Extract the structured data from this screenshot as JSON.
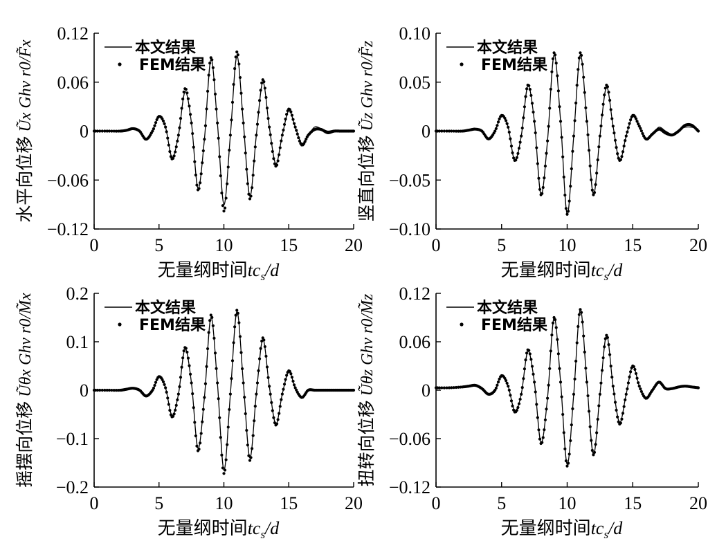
{
  "chart_data": [
    {
      "type": "line",
      "panel": "top-left",
      "xlabel": "无量纲时间tc_s/d",
      "xlabel_cn": "无量纲时间",
      "ylabel_cn": "水平向位移",
      "ylabel_math": "Ũx Ghv r0/F̃x",
      "xlim": [
        0,
        20
      ],
      "ylim": [
        -0.12,
        0.12
      ],
      "xticks": [
        "0",
        "5",
        "10",
        "15",
        "20"
      ],
      "yticks": [
        "0.12",
        "0.06",
        "0",
        "−0.06",
        "−0.12"
      ],
      "ytick_values": [
        0.12,
        0.06,
        0,
        -0.06,
        -0.12
      ],
      "legend_position": "top-left",
      "series": [
        {
          "name": "本文结果",
          "style": "line",
          "color": "#000000",
          "x": [
            0,
            1,
            2,
            2.5,
            3,
            3.5,
            4,
            4.5,
            5,
            5.5,
            6,
            6.5,
            7,
            7.5,
            8,
            8.5,
            9,
            9.5,
            10,
            10.5,
            11,
            11.5,
            12,
            12.5,
            13,
            13.5,
            14,
            14.5,
            15,
            15.5,
            16,
            16.5,
            17,
            17.5,
            18,
            18.5,
            19,
            19.5,
            20
          ],
          "y": [
            0,
            0,
            0,
            0.001,
            0.002,
            0,
            -0.01,
            0,
            0.018,
            0.005,
            -0.032,
            -0.005,
            0.048,
            0.01,
            -0.07,
            -0.01,
            0.088,
            0.01,
            -0.09,
            -0.005,
            0.092,
            0.01,
            -0.08,
            -0.005,
            0.06,
            0.005,
            -0.04,
            -0.005,
            0.025,
            0.005,
            -0.015,
            -0.005,
            0.005,
            0.003,
            0,
            0.001,
            0,
            0.001,
            0
          ]
        },
        {
          "name": "FEM结果",
          "style": "dots",
          "color": "#000000",
          "x": [
            0,
            1,
            2,
            2.5,
            3,
            3.5,
            4,
            4.5,
            5,
            5.5,
            6,
            6.5,
            7,
            7.5,
            8,
            8.5,
            9,
            9.5,
            10,
            10.5,
            11,
            11.5,
            12,
            12.5,
            13,
            13.5,
            14,
            14.5,
            15,
            15.5,
            16,
            16.5,
            17,
            17.5,
            18,
            18.5,
            19,
            19.5,
            20
          ],
          "y": [
            0,
            0,
            0,
            0.001,
            0.003,
            0,
            -0.01,
            0,
            0.018,
            0.005,
            -0.034,
            -0.005,
            0.052,
            0.01,
            -0.072,
            -0.01,
            0.09,
            0.01,
            -0.098,
            -0.005,
            0.097,
            0.01,
            -0.083,
            -0.005,
            0.063,
            0.005,
            -0.043,
            -0.005,
            0.027,
            0.005,
            -0.017,
            -0.005,
            0.002,
            0.002,
            -0.002,
            0,
            0,
            0,
            0
          ]
        }
      ]
    },
    {
      "type": "line",
      "panel": "top-right",
      "xlabel": "无量纲时间tc_s/d",
      "xlabel_cn": "无量纲时间",
      "ylabel_cn": "竖直向位移",
      "ylabel_math": "Ũz Ghv r0/F̃z",
      "xlim": [
        0,
        20
      ],
      "ylim": [
        -0.1,
        0.1
      ],
      "xticks": [
        "0",
        "5",
        "10",
        "15",
        "20"
      ],
      "yticks": [
        "0.10",
        "0.05",
        "0",
        "−0.05",
        "−0.10"
      ],
      "ytick_values": [
        0.1,
        0.05,
        0,
        -0.05,
        -0.1
      ],
      "legend_position": "top-left",
      "series": [
        {
          "name": "本文结果",
          "style": "line",
          "color": "#000000",
          "x": [
            0,
            1,
            2,
            2.5,
            3,
            3.5,
            4,
            4.5,
            5,
            5.5,
            6,
            6.5,
            7,
            7.5,
            8,
            8.5,
            9,
            9.5,
            10,
            10.5,
            11,
            11.5,
            12,
            12.5,
            13,
            13.5,
            14,
            14.5,
            15,
            15.5,
            16,
            16.5,
            17,
            17.5,
            18,
            18.5,
            19,
            19.5,
            20
          ],
          "y": [
            0,
            0,
            0,
            0.001,
            0.002,
            0,
            -0.008,
            0,
            0.016,
            0.004,
            -0.03,
            -0.005,
            0.046,
            0.01,
            -0.065,
            -0.01,
            0.078,
            0.01,
            -0.085,
            -0.005,
            0.078,
            0.01,
            -0.065,
            -0.005,
            0.045,
            0.005,
            -0.03,
            -0.005,
            0.015,
            0.005,
            -0.008,
            -0.003,
            0.004,
            0,
            -0.003,
            0.001,
            0.004,
            0.004,
            0.002
          ]
        },
        {
          "name": "FEM结果",
          "style": "dots",
          "color": "#000000",
          "x": [
            0,
            1,
            2,
            2.5,
            3,
            3.5,
            4,
            4.5,
            5,
            5.5,
            6,
            6.5,
            7,
            7.5,
            8,
            8.5,
            9,
            9.5,
            10,
            10.5,
            11,
            11.5,
            12,
            12.5,
            13,
            13.5,
            14,
            14.5,
            15,
            15.5,
            16,
            16.5,
            17,
            17.5,
            18,
            18.5,
            19,
            19.5,
            20
          ],
          "y": [
            0,
            0,
            0,
            0.001,
            0.002,
            0,
            -0.008,
            0,
            0.016,
            0.004,
            -0.03,
            -0.005,
            0.047,
            0.01,
            -0.065,
            -0.01,
            0.08,
            0.01,
            -0.085,
            -0.005,
            0.08,
            0.01,
            -0.065,
            -0.005,
            0.047,
            0.005,
            -0.03,
            -0.005,
            0.016,
            0.005,
            -0.008,
            -0.003,
            0.002,
            -0.002,
            -0.004,
            0,
            0.006,
            0.006,
            0
          ]
        }
      ]
    },
    {
      "type": "line",
      "panel": "bottom-left",
      "xlabel": "无量纲时间tc_s/d",
      "xlabel_cn": "无量纲时间",
      "ylabel_cn": "摇摆向位移",
      "ylabel_math": "Ũθx Ghv r0/M̃x",
      "xlim": [
        0,
        20
      ],
      "ylim": [
        -0.2,
        0.2
      ],
      "xticks": [
        "0",
        "5",
        "10",
        "15",
        "20"
      ],
      "yticks": [
        "0.2",
        "0.1",
        "0",
        "−0.1",
        "−0.2"
      ],
      "ytick_values": [
        0.2,
        0.1,
        0,
        -0.1,
        -0.2
      ],
      "legend_position": "top-left",
      "series": [
        {
          "name": "本文结果",
          "style": "line",
          "color": "#000000",
          "x": [
            0,
            1,
            2,
            2.5,
            3,
            3.5,
            4,
            4.5,
            5,
            5.5,
            6,
            6.5,
            7,
            7.5,
            8,
            8.5,
            9,
            9.5,
            10,
            10.5,
            11,
            11.5,
            12,
            12.5,
            13,
            13.5,
            14,
            14.5,
            15,
            15.5,
            16,
            16.5,
            17,
            17.5,
            18,
            18.5,
            19,
            19.5,
            20
          ],
          "y": [
            0,
            0,
            0,
            0.002,
            0.004,
            0,
            -0.012,
            0,
            0.028,
            0.005,
            -0.052,
            -0.008,
            0.085,
            0.015,
            -0.12,
            -0.015,
            0.15,
            0.015,
            -0.165,
            -0.008,
            0.162,
            0.015,
            -0.14,
            -0.008,
            0.105,
            0.008,
            -0.07,
            -0.008,
            0.038,
            0.005,
            -0.015,
            0,
            0,
            0,
            0,
            0,
            0,
            0,
            0
          ]
        },
        {
          "name": "FEM结果",
          "style": "dots",
          "color": "#000000",
          "x": [
            0,
            1,
            2,
            2.5,
            3,
            3.5,
            4,
            4.5,
            5,
            5.5,
            6,
            6.5,
            7,
            7.5,
            8,
            8.5,
            9,
            9.5,
            10,
            10.5,
            11,
            11.5,
            12,
            12.5,
            13,
            13.5,
            14,
            14.5,
            15,
            15.5,
            16,
            16.5,
            17,
            17.5,
            18,
            18.5,
            19,
            19.5,
            20
          ],
          "y": [
            0,
            0,
            0,
            0.002,
            0.004,
            0,
            -0.012,
            0,
            0.028,
            0.005,
            -0.055,
            -0.008,
            0.088,
            0.015,
            -0.125,
            -0.015,
            0.155,
            0.015,
            -0.172,
            -0.008,
            0.165,
            0.015,
            -0.145,
            -0.008,
            0.108,
            0.008,
            -0.072,
            -0.008,
            0.04,
            0.005,
            -0.015,
            0,
            0,
            0,
            0,
            0,
            0,
            0,
            0
          ]
        }
      ]
    },
    {
      "type": "line",
      "panel": "bottom-right",
      "xlabel": "无量纲时间tc_s/d",
      "xlabel_cn": "无量纲时间",
      "ylabel_cn": "扭转向位移",
      "ylabel_math": "Ũθz Ghv r0/M̃z",
      "xlim": [
        0,
        20
      ],
      "ylim": [
        -0.12,
        0.12
      ],
      "xticks": [
        "0",
        "5",
        "10",
        "15",
        "20"
      ],
      "yticks": [
        "0.12",
        "0.06",
        "0",
        "−0.06",
        "−0.12"
      ],
      "ytick_values": [
        0.12,
        0.06,
        0,
        -0.06,
        -0.12
      ],
      "legend_position": "top-left",
      "series": [
        {
          "name": "本文结果",
          "style": "line",
          "color": "#000000",
          "x": [
            0,
            1,
            2,
            2.5,
            3,
            3.5,
            4,
            4.5,
            5,
            5.5,
            6,
            6.5,
            7,
            7.5,
            8,
            8.5,
            9,
            9.5,
            10,
            10.5,
            11,
            11.5,
            12,
            12.5,
            13,
            13.5,
            14,
            14.5,
            15,
            15.5,
            16,
            16.5,
            17,
            17.5,
            18,
            18.5,
            19,
            19.5,
            20
          ],
          "y": [
            0.003,
            0.003,
            0.004,
            0.005,
            0.006,
            0.002,
            -0.005,
            0,
            0.018,
            0.005,
            -0.025,
            -0.005,
            0.048,
            0.01,
            -0.065,
            -0.01,
            0.09,
            0.01,
            -0.092,
            -0.005,
            0.1,
            0.01,
            -0.08,
            -0.005,
            0.068,
            0.005,
            -0.04,
            -0.005,
            0.03,
            0.005,
            -0.01,
            0,
            0.01,
            0.002,
            0.002,
            0.004,
            0.005,
            0.004,
            0.003
          ]
        },
        {
          "name": "FEM结果",
          "style": "dots",
          "color": "#000000",
          "x": [
            0,
            1,
            2,
            2.5,
            3,
            3.5,
            4,
            4.5,
            5,
            5.5,
            6,
            6.5,
            7,
            7.5,
            8,
            8.5,
            9,
            9.5,
            10,
            10.5,
            11,
            11.5,
            12,
            12.5,
            13,
            13.5,
            14,
            14.5,
            15,
            15.5,
            16,
            16.5,
            17,
            17.5,
            18,
            18.5,
            19,
            19.5,
            20
          ],
          "y": [
            0.003,
            0.003,
            0.004,
            0.005,
            0.006,
            0.002,
            -0.005,
            0,
            0.018,
            0.005,
            -0.027,
            -0.005,
            0.05,
            0.01,
            -0.066,
            -0.01,
            0.09,
            0.01,
            -0.094,
            -0.005,
            0.1,
            0.01,
            -0.08,
            -0.005,
            0.068,
            0.005,
            -0.042,
            -0.005,
            0.03,
            0.005,
            -0.01,
            0,
            0.01,
            0.002,
            0.002,
            0.004,
            0.005,
            0.004,
            0.003
          ]
        }
      ]
    }
  ]
}
